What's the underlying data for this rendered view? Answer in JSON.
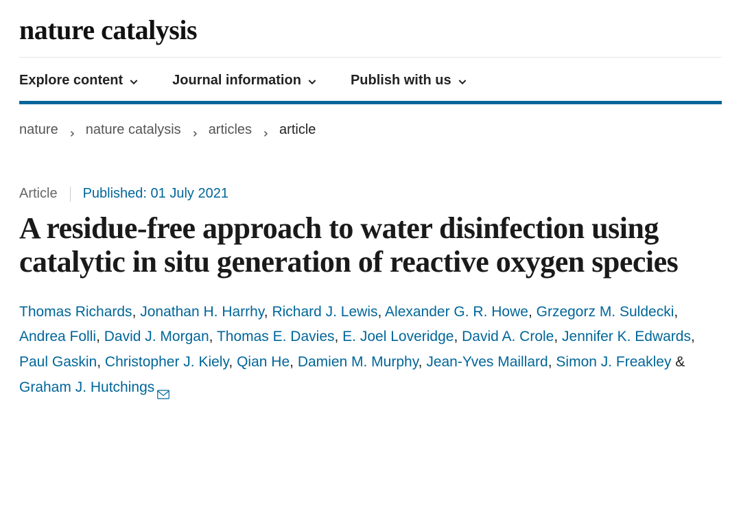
{
  "journal": {
    "name": "nature catalysis"
  },
  "nav": {
    "items": [
      {
        "label": "Explore content"
      },
      {
        "label": "Journal information"
      },
      {
        "label": "Publish with us"
      }
    ]
  },
  "breadcrumb": {
    "items": [
      {
        "label": "nature",
        "link": true
      },
      {
        "label": "nature catalysis",
        "link": true
      },
      {
        "label": "articles",
        "link": true
      },
      {
        "label": "article",
        "link": false
      }
    ]
  },
  "article": {
    "type": "Article",
    "published_label": "Published: 01 July 2021",
    "title": "A residue-free approach to water disinfection using catalytic in situ generation of reactive oxygen species",
    "authors": [
      {
        "name": "Thomas Richards"
      },
      {
        "name": "Jonathan H. Harrhy"
      },
      {
        "name": "Richard J. Lewis"
      },
      {
        "name": "Alexander G. R. Howe"
      },
      {
        "name": "Grzegorz M. Suldecki"
      },
      {
        "name": "Andrea Folli"
      },
      {
        "name": "David J. Morgan"
      },
      {
        "name": "Thomas E. Davies"
      },
      {
        "name": "E. Joel Loveridge"
      },
      {
        "name": "David A. Crole"
      },
      {
        "name": "Jennifer K. Edwards"
      },
      {
        "name": "Paul Gaskin"
      },
      {
        "name": "Christopher J. Kiely"
      },
      {
        "name": "Qian He"
      },
      {
        "name": "Damien M. Murphy"
      },
      {
        "name": "Jean-Yves Maillard"
      },
      {
        "name": "Simon J. Freakley"
      },
      {
        "name": "Graham J. Hutchings",
        "corresponding": true
      }
    ]
  },
  "colors": {
    "accent": "#006699",
    "text": "#222222",
    "muted": "#666666",
    "divider": "#e6e6e6"
  }
}
